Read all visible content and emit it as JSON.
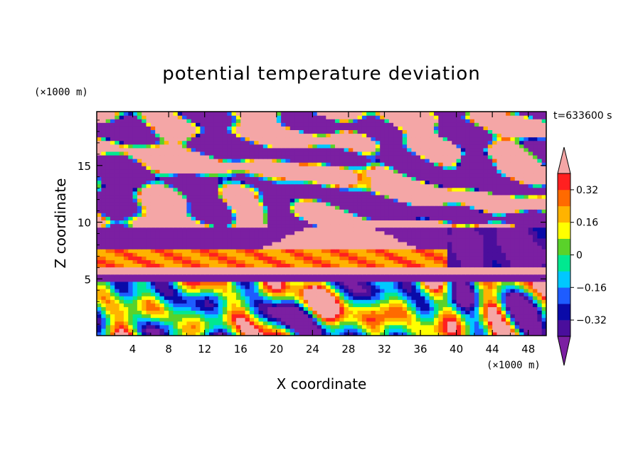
{
  "chart_data": {
    "type": "heatmap",
    "title": "potential temperature deviation",
    "xlabel": "X coordinate",
    "ylabel": "Z coordinate",
    "x_unit": "(×1000 m)",
    "y_unit": "(×1000 m)",
    "time_label": "t=633600 s",
    "xlim": [
      0,
      50
    ],
    "ylim": [
      0,
      19.75
    ],
    "x_ticks": [
      "4",
      "8",
      "12",
      "16",
      "20",
      "24",
      "28",
      "32",
      "36",
      "40",
      "44",
      "48"
    ],
    "y_ticks": [
      "5",
      "10",
      "15"
    ],
    "colorbar": {
      "levels": [
        -0.4,
        -0.32,
        -0.24,
        -0.16,
        -0.08,
        0,
        0.08,
        0.16,
        0.24,
        0.32,
        0.4
      ],
      "tick_labels": [
        "0.32",
        "0.16",
        "0",
        "−0.16",
        "−0.32"
      ],
      "extend": "both",
      "colors": [
        "#7b1fa2",
        "#4a0e9c",
        "#0a0aa8",
        "#1e5cff",
        "#00c8ff",
        "#00e890",
        "#5ad22a",
        "#ffff00",
        "#ffb300",
        "#ff6a00",
        "#ff2020",
        "#f4a6a6"
      ]
    }
  }
}
